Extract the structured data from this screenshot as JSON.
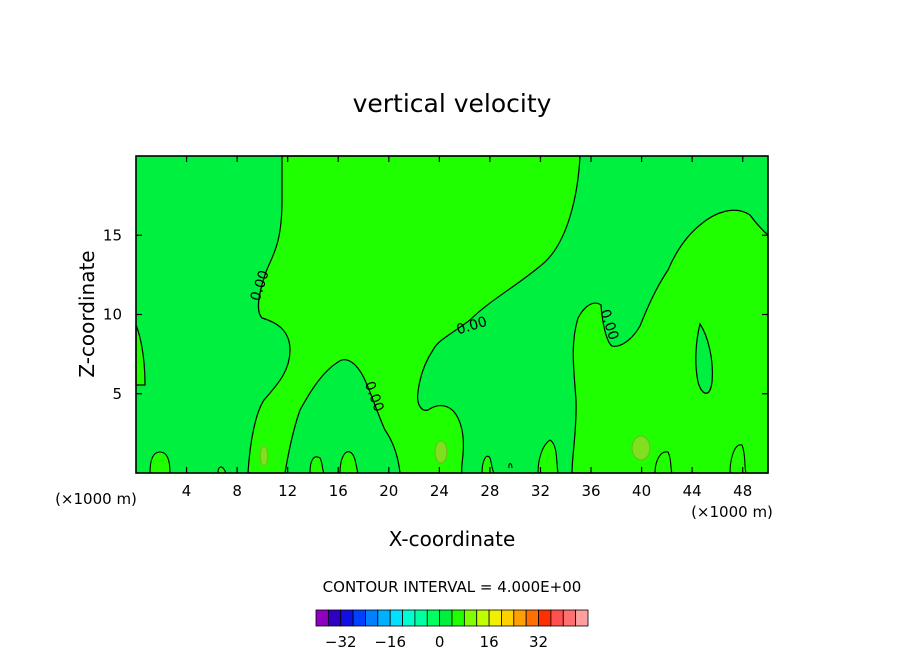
{
  "chart_data": {
    "type": "contour",
    "title": "vertical velocity",
    "xlabel": "X-coordinate",
    "ylabel": "Z-coordinate",
    "x_unit": "(×1000 m)",
    "xlim": [
      0,
      50
    ],
    "ylim": [
      0,
      20
    ],
    "x_ticks": [
      4,
      8,
      12,
      16,
      20,
      24,
      28,
      32,
      36,
      40,
      44,
      48
    ],
    "y_ticks": [
      5,
      10,
      15
    ],
    "contour_labels": [
      "0.00",
      "0.00",
      "0.00",
      "0.00"
    ],
    "contour_interval_text": "CONTOUR INTERVAL = 4.000E+00",
    "colors": {
      "background_field": "#00f040",
      "positive_field": "#20ff00",
      "strong_positive_spots": "#80e020"
    },
    "colorbar": {
      "tick_labels": [
        "-32",
        "-16",
        "0",
        "16",
        "32"
      ],
      "colors": [
        "#9000c0",
        "#3000c0",
        "#1010e0",
        "#0040ff",
        "#0080ff",
        "#00b0ff",
        "#00e0ff",
        "#00ffd0",
        "#00ffa0",
        "#00ff60",
        "#00f040",
        "#20ff00",
        "#80ff00",
        "#c0ff00",
        "#f0f000",
        "#ffd000",
        "#ffa000",
        "#ff7000",
        "#ff3000",
        "#ff5050",
        "#ff7070",
        "#ffa0a0"
      ]
    }
  }
}
